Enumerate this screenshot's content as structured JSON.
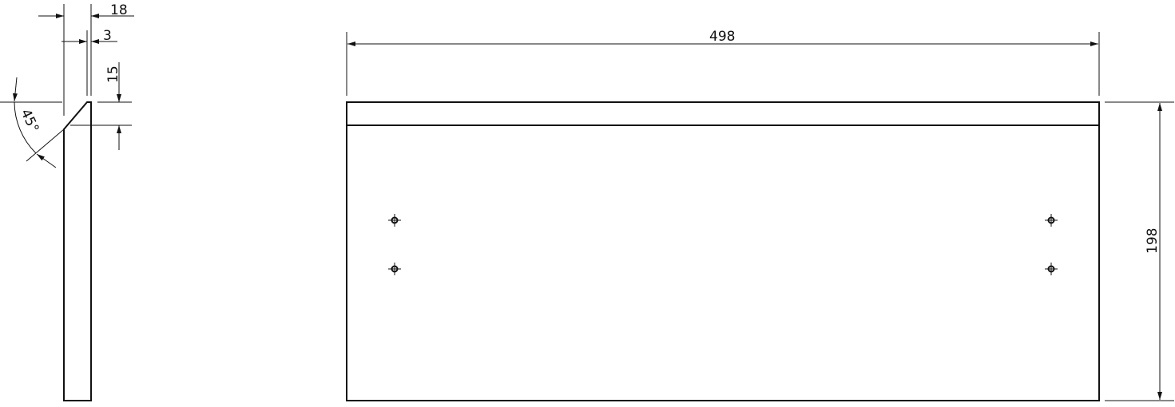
{
  "side_view": {
    "width_dim": "18",
    "chamfer_dim": "3",
    "chamfer_height_dim": "15",
    "angle_dim": "45°"
  },
  "front_view": {
    "length_dim": "498",
    "height_dim": "198",
    "hole_count": 4
  },
  "colors": {
    "line": "#111111",
    "background": "#ffffff"
  }
}
